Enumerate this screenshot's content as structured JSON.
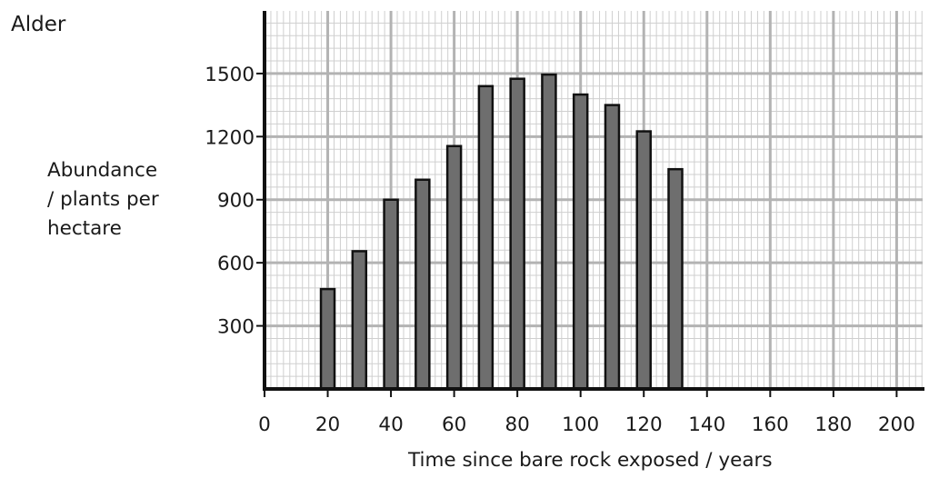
{
  "chart_data": {
    "type": "bar",
    "species_label": "Alder",
    "ylabel_lines": [
      "Abundance",
      "/ plants per",
      "hectare"
    ],
    "xlabel": "Time since bare rock exposed / years",
    "x": [
      20,
      30,
      40,
      50,
      60,
      70,
      80,
      90,
      100,
      110,
      120,
      130
    ],
    "values": [
      475,
      655,
      900,
      995,
      1155,
      1440,
      1475,
      1495,
      1400,
      1350,
      1225,
      1045
    ],
    "xlim": [
      0,
      215
    ],
    "ylim": [
      0,
      1800
    ],
    "x_ticks": [
      0,
      20,
      40,
      60,
      80,
      100,
      120,
      140,
      160,
      180,
      200
    ],
    "y_ticks": [
      300,
      600,
      900,
      1200,
      1500
    ],
    "grid": true,
    "colors": {
      "bar_fill": "#6e6e6e",
      "bar_stroke": "#111111",
      "grid_major": "#b3b3b3",
      "grid_minor": "#cfcfcf",
      "axis": "#111111"
    }
  }
}
